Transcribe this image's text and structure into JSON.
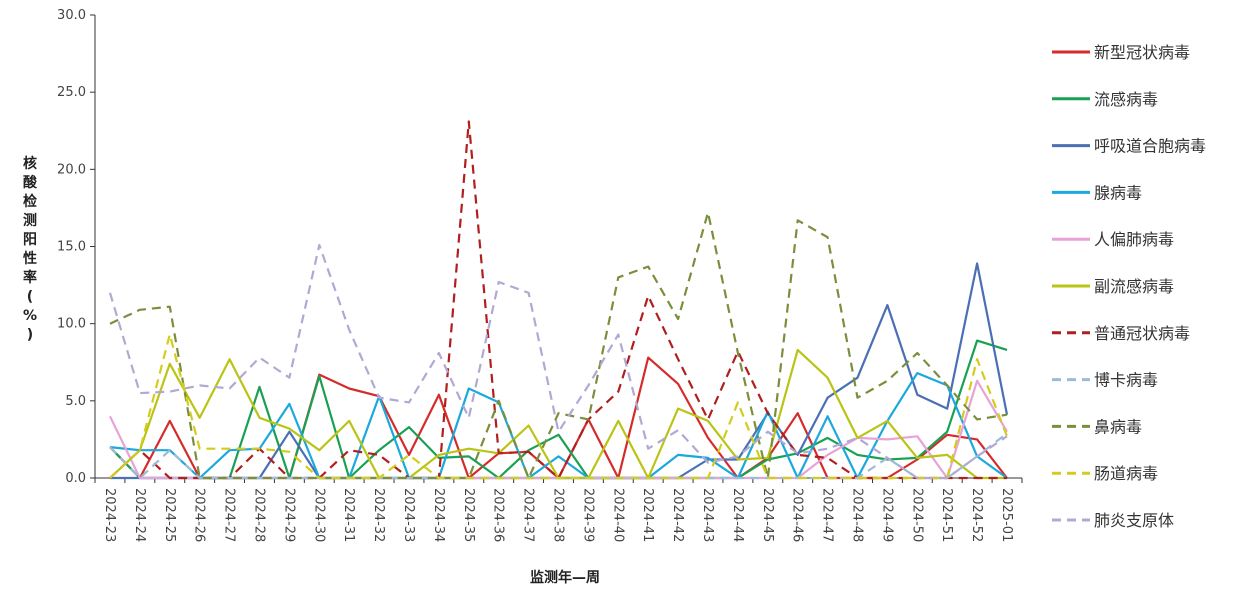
{
  "chart_data": {
    "type": "line",
    "xlabel": "监测年—周",
    "ylabel": "核酸检测阳性率(%)",
    "ylim": [
      0,
      30
    ],
    "yticks": [
      "0.0",
      "5.0",
      "10.0",
      "15.0",
      "20.0",
      "25.0",
      "30.0"
    ],
    "grid": false,
    "legend_position": "right",
    "categories": [
      "2024-23",
      "2024-24",
      "2024-25",
      "2024-26",
      "2024-27",
      "2024-28",
      "2024-29",
      "2024-30",
      "2024-31",
      "2024-32",
      "2024-33",
      "2024-34",
      "2024-35",
      "2024-36",
      "2024-37",
      "2024-38",
      "2024-39",
      "2024-40",
      "2024-41",
      "2024-42",
      "2024-43",
      "2024-44",
      "2024-45",
      "2024-46",
      "2024-47",
      "2024-48",
      "2024-49",
      "2024-50",
      "2024-51",
      "2024-52",
      "2025-01"
    ],
    "series": [
      {
        "name": "新型冠状病毒",
        "color": "#d62b2b",
        "dashed": false,
        "values": [
          2.0,
          0.0,
          3.7,
          0.0,
          0.0,
          0.0,
          0.0,
          6.7,
          5.8,
          5.3,
          1.5,
          5.4,
          0.0,
          1.6,
          1.7,
          0.0,
          3.8,
          0.0,
          7.8,
          6.1,
          2.6,
          0.0,
          1.3,
          4.2,
          0.0,
          0.0,
          0.0,
          1.2,
          2.8,
          2.5,
          0.0
        ]
      },
      {
        "name": "流感病毒",
        "color": "#1aa053",
        "dashed": false,
        "values": [
          2.0,
          0.0,
          0.0,
          0.0,
          0.0,
          5.9,
          0.0,
          6.6,
          0.0,
          1.8,
          3.3,
          1.3,
          1.4,
          0.0,
          1.8,
          2.8,
          0.0,
          0.0,
          0.0,
          0.0,
          0.0,
          0.0,
          1.2,
          1.6,
          2.6,
          1.5,
          1.2,
          1.3,
          3.0,
          8.9,
          8.3
        ]
      },
      {
        "name": "呼吸道合胞病毒",
        "color": "#4a6fb5",
        "dashed": false,
        "values": [
          0.0,
          0.0,
          0.0,
          0.0,
          0.0,
          0.0,
          3.0,
          0.0,
          0.0,
          0.0,
          0.0,
          0.0,
          0.0,
          0.0,
          0.0,
          0.0,
          0.0,
          0.0,
          0.0,
          0.0,
          1.2,
          1.2,
          4.2,
          1.5,
          5.2,
          6.5,
          11.2,
          5.4,
          4.5,
          13.9,
          4.1
        ]
      },
      {
        "name": "腺病毒",
        "color": "#1ba8de",
        "dashed": false,
        "values": [
          2.0,
          1.8,
          1.8,
          0.0,
          1.8,
          1.9,
          4.8,
          0.0,
          0.0,
          5.3,
          0.0,
          0.0,
          5.8,
          4.9,
          0.0,
          1.4,
          0.0,
          0.0,
          0.0,
          1.5,
          1.3,
          0.0,
          4.3,
          0.0,
          4.0,
          0.0,
          3.7,
          6.8,
          6.0,
          1.4,
          0.0
        ]
      },
      {
        "name": "人偏肺病毒",
        "color": "#e6a3d8",
        "dashed": false,
        "values": [
          4.0,
          0.0,
          0.0,
          0.0,
          0.0,
          0.0,
          0.0,
          0.0,
          0.0,
          0.0,
          0.0,
          0.0,
          0.0,
          0.0,
          0.0,
          0.0,
          0.0,
          0.0,
          0.0,
          0.0,
          0.0,
          0.0,
          0.0,
          0.0,
          1.5,
          2.6,
          2.5,
          2.7,
          0.0,
          6.3,
          3.0
        ]
      },
      {
        "name": "副流感病毒",
        "color": "#b9c415",
        "dashed": false,
        "values": [
          0.0,
          1.8,
          7.4,
          3.9,
          7.7,
          3.9,
          3.2,
          1.8,
          3.7,
          0.0,
          0.0,
          1.5,
          1.9,
          1.6,
          3.4,
          0.0,
          0.0,
          3.7,
          0.0,
          4.5,
          3.7,
          1.2,
          1.3,
          8.3,
          6.5,
          2.6,
          3.7,
          1.3,
          1.5,
          0.0,
          0.0
        ]
      },
      {
        "name": "普通冠状病毒",
        "color": "#b11e1e",
        "dashed": true,
        "values": [
          0.0,
          1.8,
          0.0,
          0.0,
          0.0,
          1.9,
          0.0,
          0.0,
          1.8,
          1.5,
          0.0,
          0.0,
          23.1,
          1.6,
          1.7,
          0.0,
          3.8,
          5.6,
          11.8,
          7.7,
          3.8,
          8.2,
          4.2,
          1.5,
          1.3,
          0.0,
          0.0,
          0.0,
          0.0,
          0.0,
          0.0
        ]
      },
      {
        "name": "博卡病毒",
        "color": "#9bbcd8",
        "dashed": true,
        "values": [
          2.0,
          0.0,
          1.8,
          0.0,
          0.0,
          0.0,
          0.0,
          0.0,
          0.0,
          0.0,
          0.0,
          0.0,
          0.0,
          0.0,
          0.0,
          0.0,
          0.0,
          0.0,
          0.0,
          0.0,
          0.0,
          0.0,
          0.0,
          0.0,
          0.0,
          0.0,
          1.3,
          0.0,
          0.0,
          1.4,
          2.9
        ]
      },
      {
        "name": "鼻病毒",
        "color": "#7a8f3c",
        "dashed": true,
        "values": [
          10.0,
          10.9,
          11.1,
          0.0,
          0.0,
          0.0,
          0.0,
          0.0,
          0.0,
          0.0,
          0.0,
          0.0,
          0.0,
          5.0,
          0.0,
          4.2,
          3.8,
          13.0,
          13.7,
          10.3,
          17.2,
          8.1,
          0.0,
          16.7,
          15.6,
          5.2,
          6.3,
          8.1,
          6.0,
          3.8,
          4.1
        ]
      },
      {
        "name": "肠道病毒",
        "color": "#d4cc1c",
        "dashed": true,
        "values": [
          0.0,
          1.8,
          9.3,
          1.9,
          1.9,
          1.9,
          1.7,
          0.0,
          0.0,
          0.0,
          1.5,
          0.0,
          0.0,
          0.0,
          0.0,
          0.0,
          0.0,
          0.0,
          0.0,
          0.0,
          0.0,
          4.9,
          0.0,
          0.0,
          0.0,
          0.0,
          0.0,
          0.0,
          0.0,
          7.7,
          2.7
        ]
      },
      {
        "name": "肺炎支原体",
        "color": "#b2a8d4",
        "dashed": true,
        "values": [
          12.0,
          5.5,
          5.6,
          6.0,
          5.8,
          7.8,
          6.5,
          15.1,
          9.6,
          5.2,
          4.9,
          8.1,
          3.9,
          12.7,
          12.0,
          3.0,
          6.0,
          9.3,
          1.9,
          3.1,
          1.0,
          1.4,
          3.0,
          1.6,
          1.9,
          2.6,
          1.3,
          0.0,
          0.0,
          1.4,
          2.7
        ]
      }
    ]
  }
}
